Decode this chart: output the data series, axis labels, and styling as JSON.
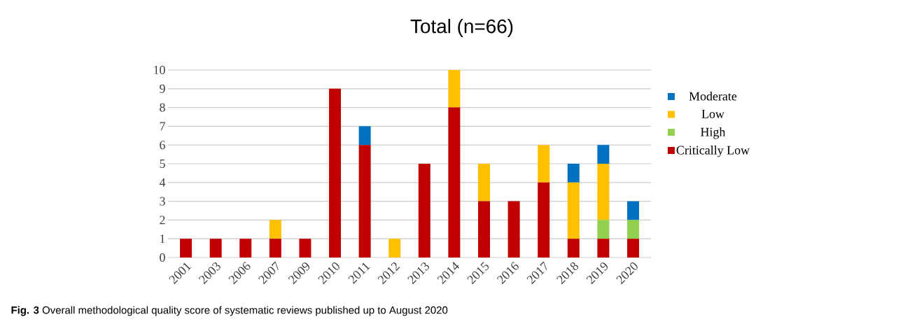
{
  "chart_data": {
    "type": "bar",
    "title": "Total (n=66)",
    "stacked": true,
    "categories": [
      "2001",
      "2003",
      "2006",
      "2007",
      "2009",
      "2010",
      "2011",
      "2012",
      "2013",
      "2014",
      "2015",
      "2016",
      "2017",
      "2018",
      "2019",
      "2020"
    ],
    "series": [
      {
        "name": "Critically Low",
        "color": "#c00000",
        "values": [
          1,
          1,
          1,
          1,
          1,
          9,
          6,
          0,
          5,
          8,
          3,
          3,
          4,
          1,
          1,
          1
        ]
      },
      {
        "name": "High",
        "color": "#92d050",
        "values": [
          0,
          0,
          0,
          0,
          0,
          0,
          0,
          0,
          0,
          0,
          0,
          0,
          0,
          0,
          1,
          1
        ]
      },
      {
        "name": "Low",
        "color": "#ffc000",
        "values": [
          0,
          0,
          0,
          1,
          0,
          0,
          0,
          1,
          0,
          2,
          2,
          0,
          2,
          3,
          3,
          0
        ]
      },
      {
        "name": "Moderate",
        "color": "#0070c0",
        "values": [
          0,
          0,
          0,
          0,
          0,
          0,
          1,
          0,
          0,
          0,
          0,
          0,
          0,
          1,
          1,
          1
        ]
      }
    ],
    "ylim": [
      0,
      10
    ],
    "yticks": [
      0,
      1,
      2,
      3,
      4,
      5,
      6,
      7,
      8,
      9,
      10
    ],
    "grid": "y",
    "legend": "right",
    "annotations": [
      "**Fig. 3** Overall methodological quality score of systematic reviews published up to August 2020"
    ]
  }
}
